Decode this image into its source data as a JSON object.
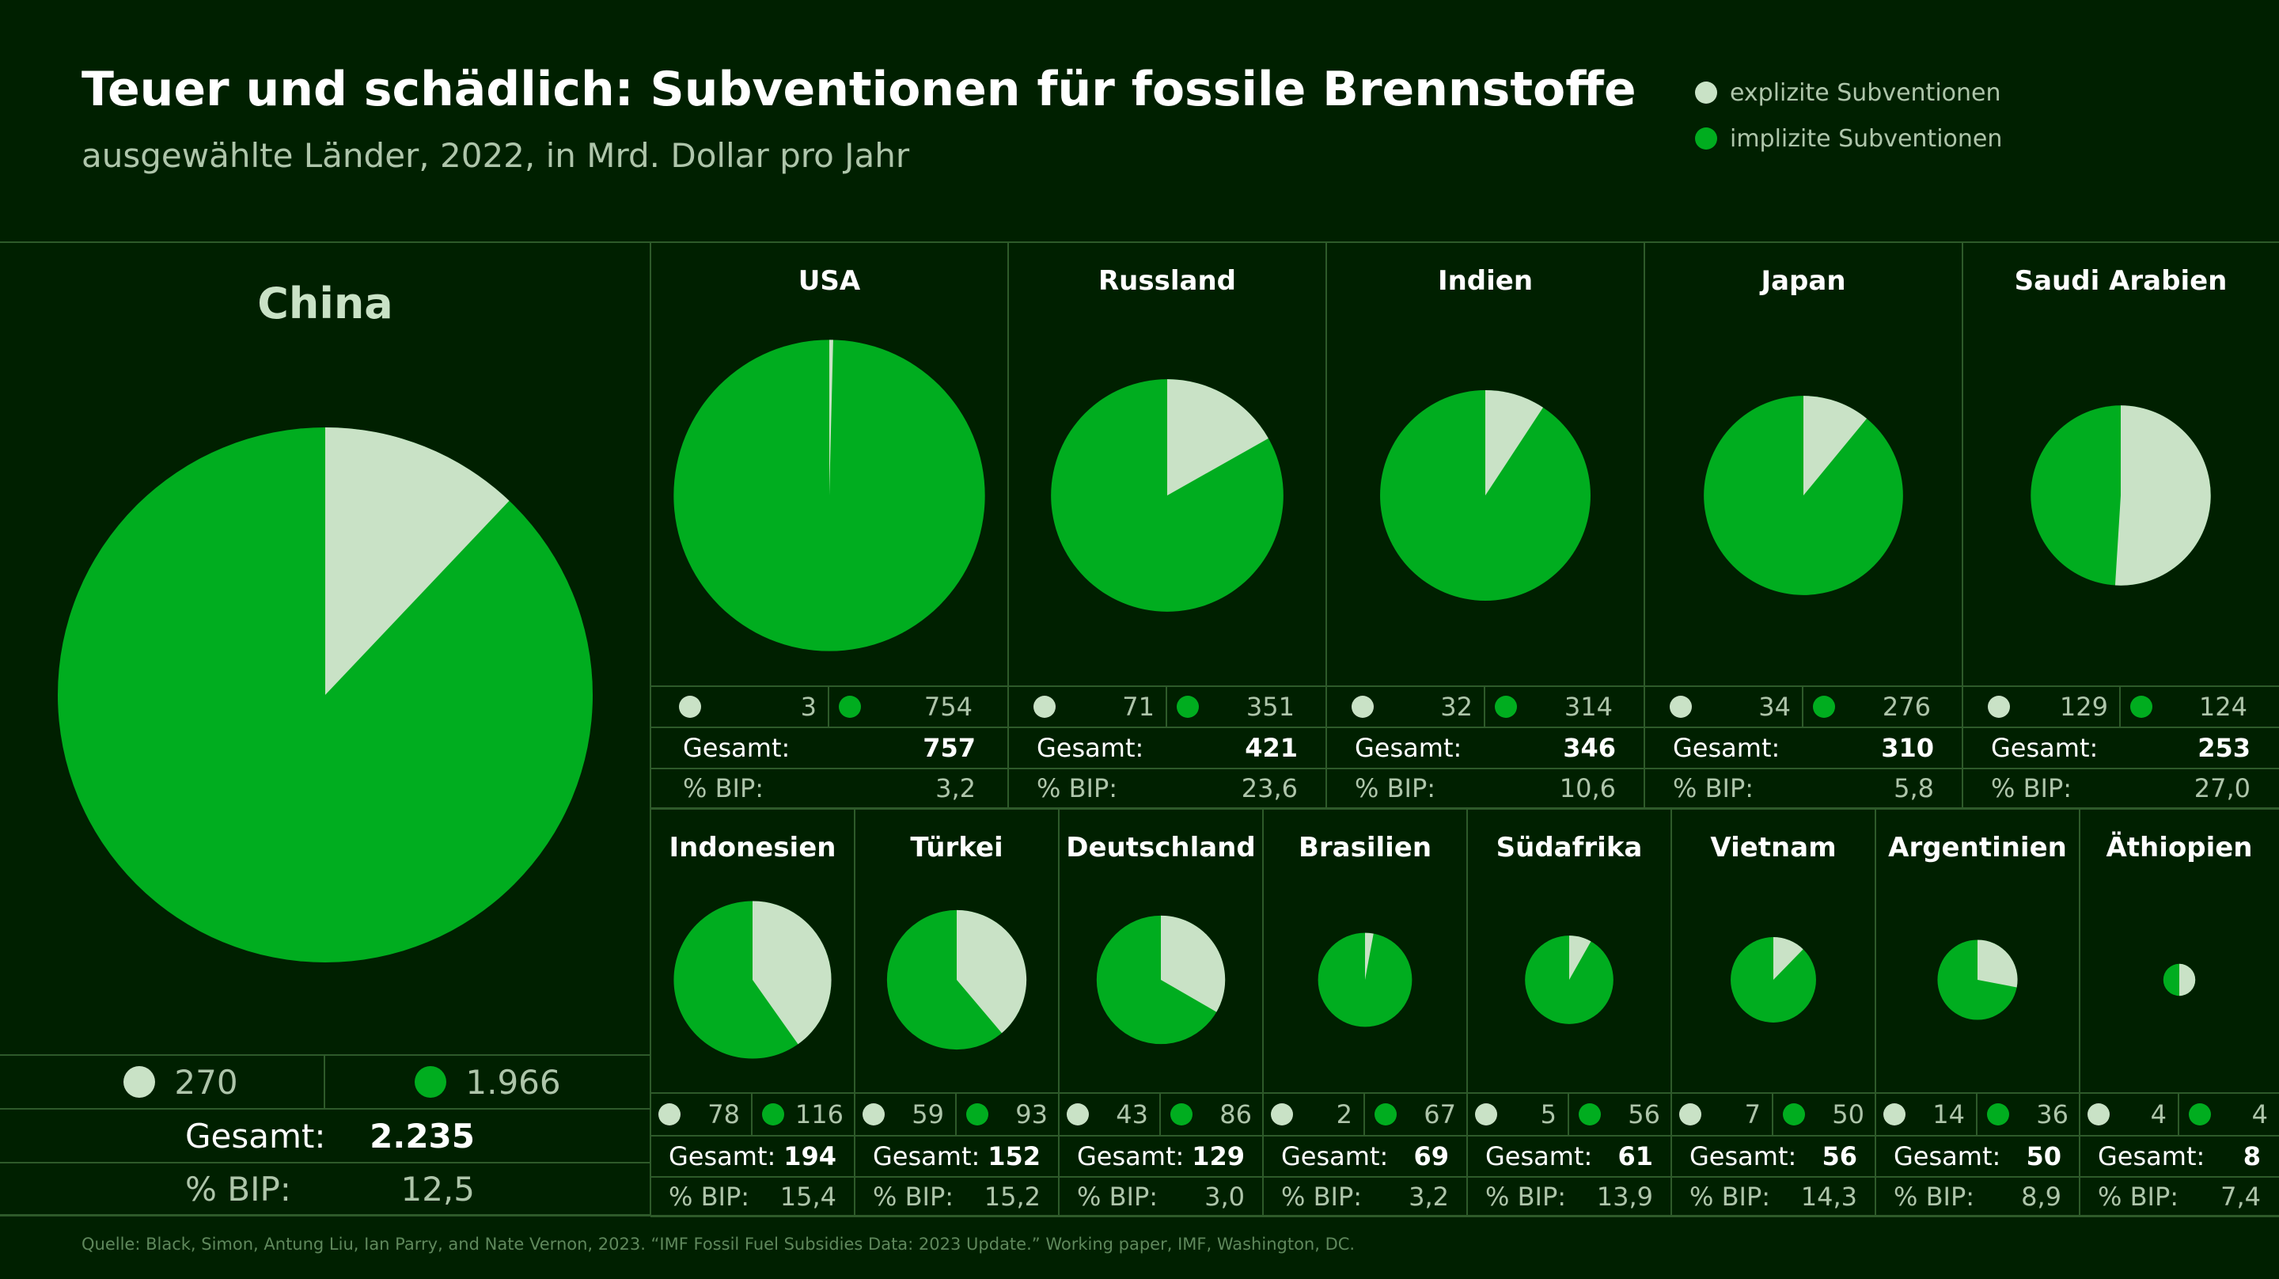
{
  "title": "Teuer und schädlich: Subventionen für fossile Brennstoffe",
  "subtitle": "ausgewählte Länder, 2022, in Mrd. Dollar pro Jahr",
  "legend": {
    "explicit": "explizite Subventionen",
    "implicit": "implizite Subventionen"
  },
  "labels": {
    "total": "Gesamt:",
    "gdp": "% BIP:"
  },
  "source": "Quelle: Black, Simon, Antung Liu, Ian Parry, and Nate Vernon, 2023. “IMF Fossil Fuel Subsidies Data: 2023 Update.” Working paper, IMF, Washington, DC.",
  "colors": {
    "background": "#002000",
    "explicit": "#c9e2c6",
    "implicit": "#00ad1f",
    "grid_line": "#2e5a2a",
    "muted_text": "#aec5aa"
  },
  "chart_data": {
    "type": "pie",
    "unit": "Mrd. Dollar pro Jahr",
    "countries": [
      {
        "name": "China",
        "explicit": 270,
        "implicit": 1966,
        "explicit_label": "270",
        "implicit_label": "1.966",
        "total_label": "2.235",
        "gdp_label": "12,5"
      },
      {
        "name": "USA",
        "explicit": 3,
        "implicit": 754,
        "explicit_label": "3",
        "implicit_label": "754",
        "total_label": "757",
        "gdp_label": "3,2"
      },
      {
        "name": "Russland",
        "explicit": 71,
        "implicit": 351,
        "explicit_label": "71",
        "implicit_label": "351",
        "total_label": "421",
        "gdp_label": "23,6"
      },
      {
        "name": "Indien",
        "explicit": 32,
        "implicit": 314,
        "explicit_label": "32",
        "implicit_label": "314",
        "total_label": "346",
        "gdp_label": "10,6"
      },
      {
        "name": "Japan",
        "explicit": 34,
        "implicit": 276,
        "explicit_label": "34",
        "implicit_label": "276",
        "total_label": "310",
        "gdp_label": "5,8"
      },
      {
        "name": "Saudi Arabien",
        "explicit": 129,
        "implicit": 124,
        "explicit_label": "129",
        "implicit_label": "124",
        "total_label": "253",
        "gdp_label": "27,0"
      },
      {
        "name": "Indonesien",
        "explicit": 78,
        "implicit": 116,
        "explicit_label": "78",
        "implicit_label": "116",
        "total_label": "194",
        "gdp_label": "15,4"
      },
      {
        "name": "Türkei",
        "explicit": 59,
        "implicit": 93,
        "explicit_label": "59",
        "implicit_label": "93",
        "total_label": "152",
        "gdp_label": "15,2"
      },
      {
        "name": "Deutschland",
        "explicit": 43,
        "implicit": 86,
        "explicit_label": "43",
        "implicit_label": "86",
        "total_label": "129",
        "gdp_label": "3,0"
      },
      {
        "name": "Brasilien",
        "explicit": 2,
        "implicit": 67,
        "explicit_label": "2",
        "implicit_label": "67",
        "total_label": "69",
        "gdp_label": "3,2"
      },
      {
        "name": "Südafrika",
        "explicit": 5,
        "implicit": 56,
        "explicit_label": "5",
        "implicit_label": "56",
        "total_label": "61",
        "gdp_label": "13,9"
      },
      {
        "name": "Vietnam",
        "explicit": 7,
        "implicit": 50,
        "explicit_label": "7",
        "implicit_label": "50",
        "total_label": "56",
        "gdp_label": "14,3"
      },
      {
        "name": "Argentinien",
        "explicit": 14,
        "implicit": 36,
        "explicit_label": "14",
        "implicit_label": "36",
        "total_label": "50",
        "gdp_label": "8,9"
      },
      {
        "name": "Äthiopien",
        "explicit": 4,
        "implicit": 4,
        "explicit_label": "4",
        "implicit_label": "4",
        "total_label": "8",
        "gdp_label": "7,4"
      }
    ]
  }
}
